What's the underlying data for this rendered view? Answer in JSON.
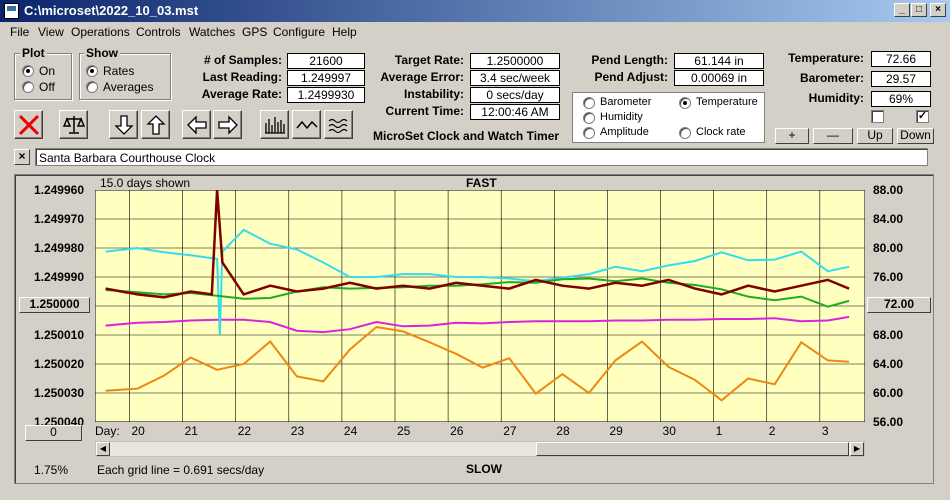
{
  "window": {
    "title": "C:\\microset\\2022_10_03.mst"
  },
  "menu": [
    "File",
    "View",
    "Operations",
    "Controls",
    "Watches",
    "GPS",
    "Configure",
    "Help"
  ],
  "plot_group": {
    "title": "Plot",
    "on": "On",
    "off": "Off",
    "selected": "On"
  },
  "show_group": {
    "title": "Show",
    "rates": "Rates",
    "averages": "Averages",
    "selected": "Rates"
  },
  "stats": {
    "samples_label": "# of Samples:",
    "samples": "21600",
    "last_reading_label": "Last Reading:",
    "last_reading": "1.249997",
    "average_rate_label": "Average Rate:",
    "average_rate": "1.2499930",
    "target_rate_label": "Target Rate:",
    "target_rate": "1.2500000",
    "average_error_label": "Average Error:",
    "average_error": "3.4 sec/week",
    "instability_label": "Instability:",
    "instability": "0 secs/day",
    "current_time_label": "Current Time:",
    "current_time": "12:00:46 AM",
    "pend_length_label": "Pend Length:",
    "pend_length": "61.144 in",
    "pend_adjust_label": "Pend Adjust:",
    "pend_adjust": "0.00069 in",
    "temperature_label": "Temperature:",
    "temperature": "72.66",
    "barometer_label": "Barometer:",
    "barometer": "29.57",
    "humidity_label": "Humidity:",
    "humidity": "69%"
  },
  "app_caption": "MicroSet Clock and Watch Timer",
  "legend": {
    "barometer": "Barometer",
    "temperature": "Temperature",
    "humidity": "Humidity",
    "amplitude": "Amplitude",
    "clock_rate": "Clock rate",
    "selected": "Temperature"
  },
  "adjust_buttons": {
    "plus": "+",
    "minus": "—",
    "up": "Up",
    "down": "Down"
  },
  "checkboxes": [
    false,
    true
  ],
  "clock_name": "Santa Barbara Courthouse Clock",
  "plot": {
    "days_shown": "15.0 days shown",
    "fast_label": "FAST",
    "slow_label": "SLOW",
    "day_label": "Day:",
    "grid_note": "Each grid line = 0.691 secs/day",
    "percent": "1.75%",
    "left_button": "1.250000",
    "left_bottom_button": "0",
    "right_button": "72.00"
  },
  "colors": {
    "plot_bg": "#ffffc0",
    "clock_rate": "#800000",
    "temperature": "#22aa22",
    "amplitude": "#33ddee",
    "humidity": "#dd22dd",
    "barometer": "#ee8811"
  },
  "chart_data": {
    "type": "line",
    "title": "",
    "x_label": "Day:",
    "x_ticks": [
      "20",
      "21",
      "22",
      "23",
      "24",
      "25",
      "26",
      "27",
      "28",
      "29",
      "30",
      "1",
      "2",
      "3"
    ],
    "y_left_ticks": [
      "1.249960",
      "1.249970",
      "1.249980",
      "1.249990",
      "1.250000",
      "1.250010",
      "1.250020",
      "1.250030",
      "1.250040"
    ],
    "y_left_range": [
      1.24996,
      1.25004
    ],
    "y_right_ticks": [
      "88.00",
      "84.00",
      "80.00",
      "76.00",
      "72.00",
      "68.00",
      "64.00",
      "60.00",
      "56.00"
    ],
    "y_right_range": [
      56,
      88
    ],
    "grid": true,
    "series": [
      {
        "name": "Clock rate",
        "axis": "left",
        "x": [
          19.4,
          20,
          20.5,
          21,
          21.4,
          21.5,
          21.6,
          22,
          22.5,
          23,
          23.5,
          24,
          24.5,
          25,
          25.5,
          26,
          26.5,
          27,
          27.5,
          28,
          28.5,
          29,
          29.5,
          30,
          30.5,
          31,
          31.5,
          32,
          32.5,
          33,
          33.4
        ],
        "y": [
          1.249994,
          1.249996,
          1.249997,
          1.249995,
          1.249996,
          1.24996,
          1.249985,
          1.249996,
          1.249993,
          1.249995,
          1.249994,
          1.249992,
          1.249994,
          1.249993,
          1.249994,
          1.249992,
          1.249993,
          1.249994,
          1.249991,
          1.249993,
          1.249994,
          1.249992,
          1.249993,
          1.249991,
          1.249994,
          1.249996,
          1.249993,
          1.249995,
          1.249993,
          1.249991,
          1.249994
        ]
      },
      {
        "name": "Temperature",
        "axis": "right",
        "x": [
          19.4,
          20,
          20.5,
          21,
          21.5,
          22,
          22.5,
          23,
          23.5,
          24,
          24.5,
          25,
          25.5,
          26,
          26.5,
          27,
          27.5,
          28,
          28.5,
          29,
          29.5,
          30,
          30.5,
          31,
          31.5,
          32,
          32.5,
          33,
          33.4
        ],
        "y": [
          74.2,
          73.9,
          73.6,
          73.8,
          73.4,
          73.0,
          73.1,
          74.0,
          74.6,
          74.4,
          74.5,
          74.6,
          74.8,
          74.8,
          75.0,
          75.3,
          75.2,
          75.7,
          75.8,
          75.4,
          75.8,
          75.2,
          74.9,
          74.3,
          73.3,
          72.8,
          73.3,
          71.9,
          72.7
        ]
      },
      {
        "name": "Amplitude",
        "axis": "right",
        "x": [
          19.4,
          20,
          20.5,
          21,
          21.5,
          21.55,
          21.6,
          22,
          22.5,
          23,
          23.5,
          24,
          24.5,
          25,
          25.5,
          26,
          26.5,
          27,
          27.5,
          28,
          28.5,
          29,
          29.5,
          30,
          30.5,
          31,
          31.5,
          32,
          32.5,
          33,
          33.4
        ],
        "y": [
          79.5,
          80.0,
          79.4,
          79.0,
          78.5,
          68.0,
          79.5,
          82.5,
          80.6,
          79.8,
          78.0,
          76.0,
          76.0,
          76.4,
          76.4,
          76.0,
          76.0,
          75.8,
          75.4,
          75.9,
          76.4,
          77.4,
          76.8,
          77.6,
          78.2,
          79.4,
          78.3,
          78.4,
          79.5,
          76.8,
          77.4
        ]
      },
      {
        "name": "Humidity",
        "axis": "right",
        "x": [
          19.4,
          20,
          20.5,
          21,
          21.5,
          22,
          22.5,
          23,
          23.5,
          24,
          24.5,
          25,
          25.5,
          26,
          26.5,
          27,
          27.5,
          28,
          28.5,
          29,
          29.5,
          30,
          30.5,
          31,
          31.5,
          32,
          32.5,
          33,
          33.4
        ],
        "y": [
          69.3,
          69.7,
          69.8,
          70.0,
          70.1,
          70.1,
          69.8,
          68.6,
          68.4,
          68.8,
          69.8,
          69.2,
          69.3,
          69.7,
          69.6,
          69.8,
          69.9,
          69.9,
          69.9,
          70.0,
          70.0,
          70.1,
          70.1,
          70.2,
          70.2,
          70.3,
          69.9,
          70.0,
          70.5
        ]
      },
      {
        "name": "Barometer",
        "axis": "right",
        "x": [
          19.4,
          20,
          20.5,
          21,
          21.5,
          22,
          22.5,
          23,
          23.5,
          24,
          24.5,
          25,
          25.5,
          26,
          26.5,
          27,
          27.5,
          28,
          28.5,
          29,
          29.5,
          30,
          30.5,
          31,
          31.5,
          32,
          32.5,
          33,
          33.4
        ],
        "y": [
          60.3,
          60.6,
          62.4,
          64.9,
          63.2,
          64.0,
          67.1,
          62.3,
          61.6,
          66.0,
          69.1,
          68.5,
          67.0,
          65.4,
          63.5,
          64.8,
          59.9,
          62.6,
          60.0,
          64.5,
          67.1,
          63.6,
          61.8,
          59.0,
          62.0,
          61.2,
          67.0,
          64.5,
          64.3
        ]
      }
    ]
  }
}
